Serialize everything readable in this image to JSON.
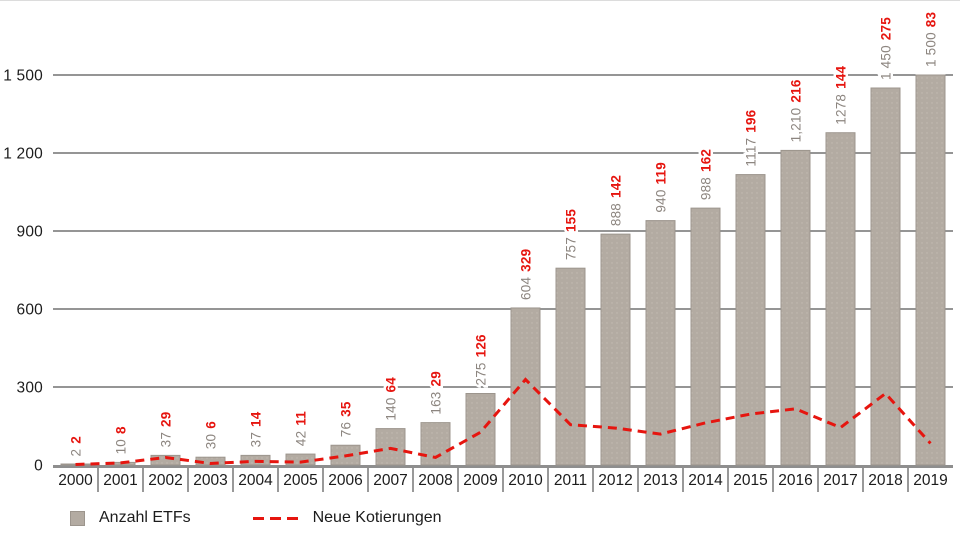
{
  "chart_data": {
    "type": "bar",
    "categories": [
      "2000",
      "2001",
      "2002",
      "2003",
      "2004",
      "2005",
      "2006",
      "2007",
      "2008",
      "2009",
      "2010",
      "2011",
      "2012",
      "2013",
      "2014",
      "2015",
      "2016",
      "2017",
      "2018",
      "2019"
    ],
    "series": [
      {
        "name": "Anzahl ETFs",
        "type": "bar",
        "values": [
          2,
          10,
          37,
          30,
          37,
          42,
          76,
          140,
          163,
          275,
          604,
          757,
          888,
          940,
          988,
          1117,
          1210,
          1278,
          1450,
          1500
        ],
        "labels": [
          "2",
          "10",
          "37",
          "30",
          "37",
          "42",
          "76",
          "140",
          "163",
          "275",
          "604",
          "757",
          "888",
          "940",
          "988",
          "1117",
          "1,210",
          "1278",
          "1 450",
          "1 500"
        ]
      },
      {
        "name": "Neue Kotierungen",
        "type": "line",
        "values": [
          2,
          8,
          29,
          6,
          14,
          11,
          35,
          64,
          29,
          126,
          329,
          155,
          142,
          119,
          162,
          196,
          216,
          144,
          275,
          83
        ],
        "labels": [
          "2",
          "8",
          "29",
          "6",
          "14",
          "11",
          "35",
          "64",
          "29",
          "126",
          "329",
          "155",
          "142",
          "119",
          "162",
          "196",
          "216",
          "144",
          "275",
          "83"
        ]
      }
    ],
    "yticks": [
      {
        "value": 0,
        "label": "0"
      },
      {
        "value": 300,
        "label": "300"
      },
      {
        "value": 600,
        "label": "600"
      },
      {
        "value": 900,
        "label": "900"
      },
      {
        "value": 1200,
        "label": "1 200"
      },
      {
        "value": 1500,
        "label": "1 500"
      }
    ],
    "ylim": [
      0,
      1500
    ],
    "xlabel": "",
    "ylabel": "",
    "title": "",
    "grid": true,
    "legend_position": "bottom"
  },
  "legend": {
    "bar_label": "Anzahl ETFs",
    "line_label": "Neue Kotierungen"
  },
  "colors": {
    "bar_fill": "#b3aba2",
    "bar_texture_dot": "#c3bcb3",
    "bar_stroke": "#9c958d",
    "bar_label_text": "#8d8680",
    "line_red": "#e6150f",
    "gridline": "#2b2b2b",
    "baseline": "#8e8e8e",
    "tick": "#333333",
    "axis_text": "#1c1c1c"
  }
}
